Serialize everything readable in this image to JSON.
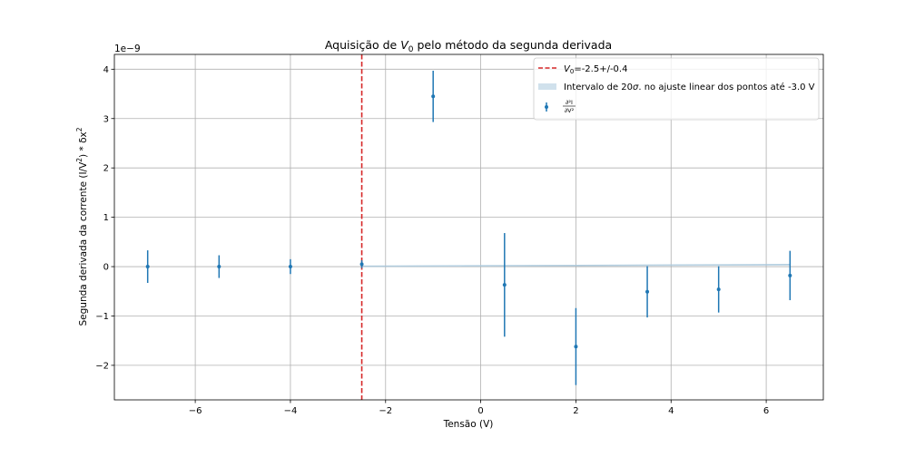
{
  "chart_data": {
    "type": "scatter",
    "title": {
      "prefix": "Aquisição de ",
      "var": "V",
      "sub": "0",
      "suffix": " pelo método da segunda derivada"
    },
    "xlabel": "Tensão (V)",
    "ylabel": {
      "text": "Segunda derivada da corrente (I/V",
      "sup1": "2",
      "mid": ") * δx",
      "sup2": "2"
    },
    "offset_text": "1e−9",
    "xlim": [
      -7.7,
      7.2
    ],
    "ylim": [
      -2.7,
      4.3
    ],
    "x_ticks": [
      -6,
      -4,
      -2,
      0,
      2,
      4,
      6
    ],
    "x_tick_labels": [
      "−6",
      "−4",
      "−2",
      "0",
      "2",
      "4",
      "6"
    ],
    "y_ticks": [
      -2,
      -1,
      0,
      1,
      2,
      3,
      4
    ],
    "y_tick_labels": [
      "−2",
      "−1",
      "0",
      "1",
      "2",
      "3",
      "4"
    ],
    "grid": true,
    "legend_position": "upper-right",
    "series": [
      {
        "kind": "errorbar",
        "color": "#1f77b4",
        "legend_label": {
          "num": "∂²I",
          "den": "∂V²"
        },
        "x": [
          -7.0,
          -5.5,
          -4.0,
          -2.5,
          -1.0,
          0.5,
          2.0,
          3.5,
          5.0,
          6.5
        ],
        "y": [
          0.0,
          0.0,
          0.0,
          0.05,
          3.45,
          -0.37,
          -1.62,
          -0.51,
          -0.46,
          -0.18
        ],
        "yerr": [
          0.33,
          0.23,
          0.15,
          0.08,
          0.52,
          1.05,
          0.78,
          0.52,
          0.47,
          0.5
        ]
      }
    ],
    "vline": {
      "x": -2.5,
      "color": "#d62728",
      "legend_var": "V",
      "legend_sub": "0",
      "legend_value": "=-2.5+/-0.4"
    },
    "band": {
      "color": "#a9c8dc",
      "legend_label": {
        "pre": "Intervalo de 20",
        "sym": "σ",
        "post": ". no ajuste linear dos pontos até -3.0 V"
      },
      "x": [
        -2.5,
        6.5
      ],
      "lower": [
        0.0,
        0.03
      ],
      "upper": [
        0.015,
        0.05
      ]
    }
  }
}
